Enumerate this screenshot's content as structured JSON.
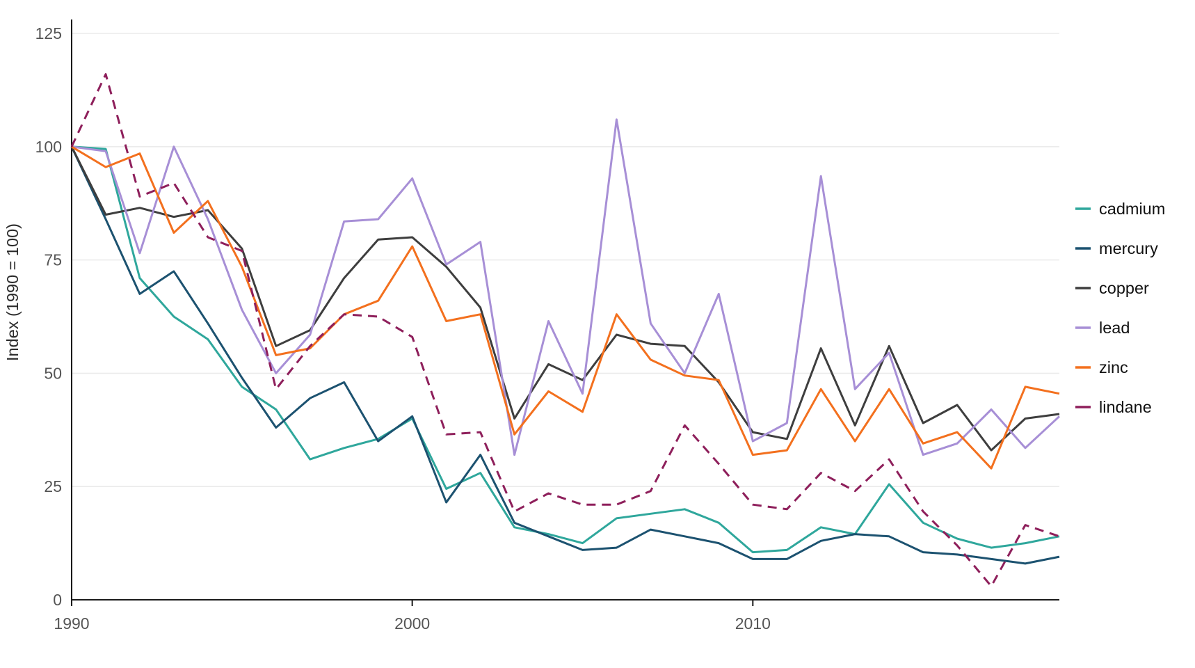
{
  "chart_data": {
    "type": "line",
    "title": "",
    "xlabel": "",
    "ylabel": "Index (1990 = 100)",
    "x": [
      1990,
      1991,
      1992,
      1993,
      1994,
      1995,
      1996,
      1997,
      1998,
      1999,
      2000,
      2001,
      2002,
      2003,
      2004,
      2005,
      2006,
      2007,
      2008,
      2009,
      2010,
      2011,
      2012,
      2013,
      2014,
      2015,
      2016,
      2017,
      2018,
      2019
    ],
    "x_ticks": [
      1990,
      2000,
      2010
    ],
    "y_ticks": [
      0,
      25,
      50,
      75,
      100,
      125
    ],
    "xlim": [
      1990,
      2019
    ],
    "ylim": [
      0,
      128.5
    ],
    "grid": "horizontal-only",
    "legend_position": "right",
    "series": [
      {
        "name": "cadmium",
        "color": "#2FA79C",
        "dashed": false,
        "values": [
          100,
          99.5,
          71,
          62.5,
          57.5,
          47,
          42,
          31,
          33.5,
          35.5,
          40,
          24.5,
          28,
          16,
          14.5,
          12.5,
          18,
          19,
          20,
          17,
          10.5,
          11,
          16,
          14.5,
          25.5,
          17,
          13.5,
          11.5,
          12.5,
          14
        ]
      },
      {
        "name": "mercury",
        "color": "#1C5270",
        "dashed": false,
        "values": [
          100,
          84,
          67.5,
          72.5,
          61,
          49,
          38,
          44.5,
          48,
          35,
          40.5,
          21.5,
          32,
          17,
          14,
          11,
          11.5,
          15.5,
          14,
          12.5,
          9,
          9,
          13,
          14.5,
          14,
          10.5,
          10,
          9,
          8,
          9.5
        ]
      },
      {
        "name": "copper",
        "color": "#3E3E3E",
        "dashed": false,
        "values": [
          100,
          85,
          86.5,
          84.5,
          86,
          77.5,
          56,
          59.5,
          71,
          79.5,
          80,
          73.5,
          64.5,
          40,
          52,
          48.5,
          58.5,
          56.5,
          56,
          48,
          37,
          35.5,
          55.5,
          38.5,
          56,
          39,
          43,
          33,
          40,
          41
        ]
      },
      {
        "name": "lead",
        "color": "#A78FD6",
        "dashed": false,
        "values": [
          100,
          99,
          76.5,
          100,
          84,
          64,
          50,
          58.5,
          83.5,
          84,
          93,
          74,
          79,
          32,
          61.5,
          45.5,
          106,
          61,
          50,
          67.5,
          35,
          39,
          93.5,
          46.5,
          54.5,
          32,
          34.5,
          42,
          33.5,
          40.5
        ]
      },
      {
        "name": "zinc",
        "color": "#F3701E",
        "dashed": false,
        "values": [
          100,
          95.5,
          98.5,
          81,
          88,
          73.5,
          54,
          55.5,
          63,
          66,
          78,
          61.5,
          63,
          36.5,
          46,
          41.5,
          63,
          53,
          49.5,
          48.5,
          32,
          33,
          46.5,
          35,
          46.5,
          34.5,
          37,
          29,
          47,
          45.5
        ]
      },
      {
        "name": "lindane",
        "color": "#8E1F5B",
        "dashed": true,
        "values": [
          100,
          116,
          89,
          92,
          80,
          77,
          46.5,
          56,
          63,
          62.5,
          58,
          36.5,
          37,
          19.5,
          23.5,
          21,
          21,
          24,
          38.5,
          30,
          21,
          20,
          28,
          24,
          31,
          19.5,
          12,
          3,
          16.5,
          14
        ]
      }
    ],
    "colors": {
      "axis": "#1A1A1A",
      "gridline": "#EBEBEB",
      "tick_label": "#555555",
      "axis_title": "#2B2B2B",
      "legend_text": "#111111",
      "background": "#FFFFFF"
    }
  }
}
